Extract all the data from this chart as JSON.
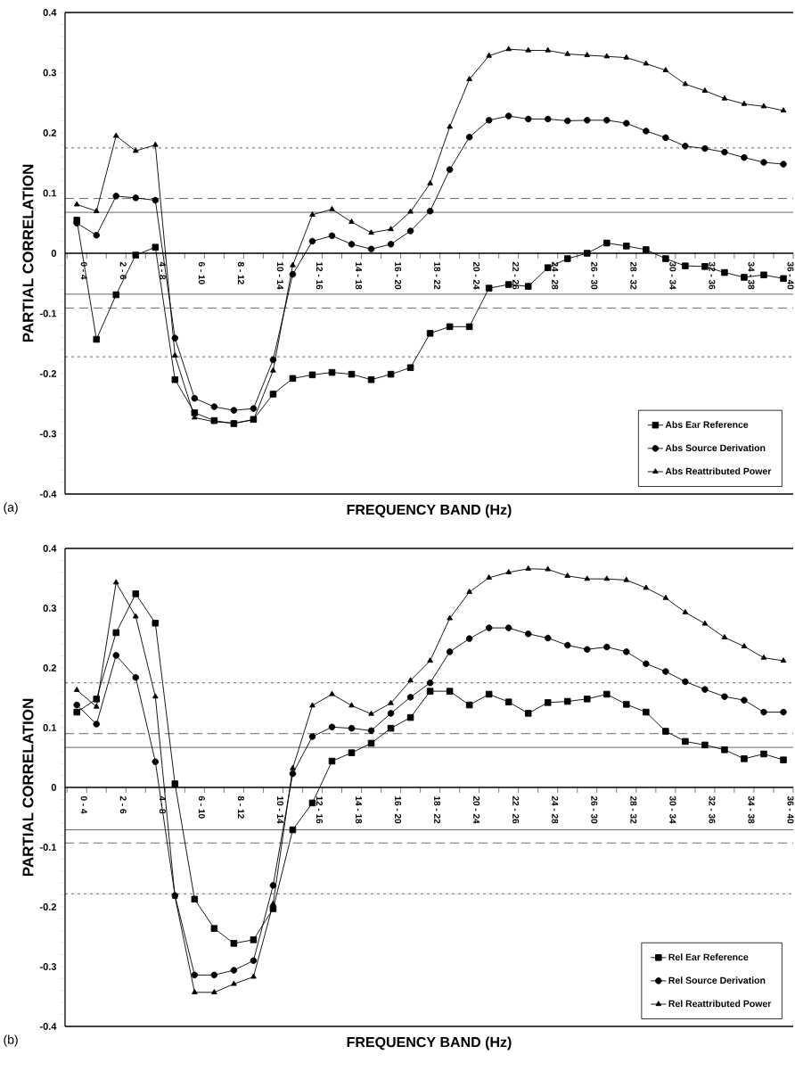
{
  "chart_data": [
    {
      "type": "line",
      "categories": [
        "0 - 4",
        null,
        "2 - 6",
        null,
        "4 - 8",
        null,
        "6 - 10",
        null,
        "8 - 12",
        null,
        "10 - 14",
        null,
        "12 - 16",
        null,
        "14 - 18",
        null,
        "16 - 20",
        null,
        "18 - 22",
        null,
        "20 - 24",
        null,
        "22 - 26",
        null,
        "24 - 28",
        null,
        "26 - 30",
        null,
        "28 - 32",
        null,
        "30 - 34",
        null,
        "32 - 36",
        null,
        "34 - 38",
        null,
        "36 - 40"
      ],
      "series": [
        {
          "name": "Abs Ear Reference",
          "color": "#000000",
          "marker": "square",
          "values": [
            0.055,
            -0.143,
            -0.069,
            -0.003,
            0.01,
            -0.21,
            -0.265,
            -0.278,
            -0.283,
            -0.276,
            -0.234,
            -0.208,
            -0.202,
            -0.198,
            -0.201,
            -0.21,
            -0.201,
            -0.19,
            -0.133,
            -0.122,
            -0.122,
            -0.058,
            -0.052,
            -0.055,
            -0.024,
            -0.009,
            0.0,
            0.017,
            0.012,
            0.006,
            -0.009,
            -0.021,
            -0.022,
            -0.032,
            -0.04,
            -0.036,
            -0.042
          ]
        },
        {
          "name": "Abs Source Derivation",
          "color": "#000000",
          "marker": "circle",
          "values": [
            0.05,
            0.03,
            0.095,
            0.092,
            0.088,
            -0.141,
            -0.241,
            -0.255,
            -0.261,
            -0.258,
            -0.177,
            -0.035,
            0.02,
            0.029,
            0.015,
            0.007,
            0.015,
            0.037,
            0.07,
            0.139,
            0.193,
            0.221,
            0.228,
            0.223,
            0.223,
            0.22,
            0.221,
            0.221,
            0.216,
            0.203,
            0.192,
            0.178,
            0.174,
            0.168,
            0.159,
            0.151,
            0.148
          ]
        },
        {
          "name": "Abs Reattributed Power",
          "color": "#000000",
          "marker": "triangle",
          "values": [
            0.081,
            0.07,
            0.195,
            0.17,
            0.18,
            -0.17,
            -0.273,
            -0.28,
            -0.282,
            -0.277,
            -0.195,
            -0.02,
            0.064,
            0.073,
            0.052,
            0.034,
            0.04,
            0.069,
            0.116,
            0.21,
            0.289,
            0.328,
            0.339,
            0.337,
            0.337,
            0.331,
            0.329,
            0.327,
            0.325,
            0.315,
            0.304,
            0.281,
            0.27,
            0.257,
            0.248,
            0.244,
            0.237
          ]
        }
      ],
      "ylim": [
        -0.4,
        0.4
      ],
      "yticks": [
        -0.4,
        -0.3,
        -0.2,
        -0.1,
        0,
        0.1,
        0.2,
        0.3,
        0.4
      ],
      "xlabel": "FREQUENCY BAND (Hz)",
      "ylabel": "PARTIAL CORRELATION",
      "ref_lines": [
        {
          "axis": "y",
          "value": 0.175,
          "line_style": "dotted",
          "color": "#000000"
        },
        {
          "axis": "y",
          "value": 0.091,
          "line_style": "dashed",
          "color": "#000000"
        },
        {
          "axis": "y",
          "value": 0.068,
          "line_style": "solid",
          "color": "#000000"
        },
        {
          "axis": "y",
          "value": -0.068,
          "line_style": "solid",
          "color": "#000000"
        },
        {
          "axis": "y",
          "value": -0.091,
          "line_style": "dashed",
          "color": "#000000"
        },
        {
          "axis": "y",
          "value": -0.172,
          "line_style": "dotted",
          "color": "#000000"
        }
      ],
      "annotations": [
        "(a)"
      ],
      "legend": "bottom right"
    },
    {
      "type": "line",
      "categories": [
        "0 - 4",
        null,
        "2 - 6",
        null,
        "4 - 8",
        null,
        "6 - 10",
        null,
        "8 - 12",
        null,
        "10 - 14",
        null,
        "12 - 16",
        null,
        "14 - 18",
        null,
        "16 - 20",
        null,
        "18 - 22",
        null,
        "20 - 24",
        null,
        "22 - 26",
        null,
        "24 - 28",
        null,
        "26 - 30",
        null,
        "28 - 32",
        null,
        "30 - 34",
        null,
        "32 - 36",
        null,
        "34 - 38",
        null,
        "36 - 40"
      ],
      "series": [
        {
          "name": "Rel Ear Reference",
          "color": "#000000",
          "marker": "square",
          "values": [
            0.126,
            0.148,
            0.259,
            0.324,
            0.275,
            0.006,
            -0.187,
            -0.236,
            -0.261,
            -0.255,
            -0.203,
            -0.071,
            -0.026,
            0.044,
            0.058,
            0.074,
            0.099,
            0.117,
            0.161,
            0.161,
            0.138,
            0.156,
            0.143,
            0.124,
            0.142,
            0.144,
            0.148,
            0.156,
            0.139,
            0.126,
            0.094,
            0.077,
            0.071,
            0.063,
            0.048,
            0.056,
            0.046
          ]
        },
        {
          "name": "Rel Source Derivation",
          "color": "#000000",
          "marker": "circle",
          "values": [
            0.138,
            0.106,
            0.221,
            0.184,
            0.043,
            -0.181,
            -0.314,
            -0.314,
            -0.306,
            -0.29,
            -0.164,
            0.023,
            0.085,
            0.101,
            0.099,
            0.095,
            0.124,
            0.151,
            0.175,
            0.227,
            0.249,
            0.267,
            0.267,
            0.257,
            0.25,
            0.238,
            0.231,
            0.235,
            0.227,
            0.207,
            0.194,
            0.177,
            0.164,
            0.152,
            0.146,
            0.126,
            0.126
          ]
        },
        {
          "name": "Rel Reattributed Power",
          "color": "#000000",
          "marker": "triangle",
          "values": [
            0.163,
            0.135,
            0.343,
            0.286,
            0.152,
            -0.183,
            -0.343,
            -0.343,
            -0.329,
            -0.317,
            -0.195,
            0.032,
            0.137,
            0.156,
            0.137,
            0.123,
            0.141,
            0.179,
            0.212,
            0.283,
            0.327,
            0.351,
            0.36,
            0.366,
            0.365,
            0.354,
            0.349,
            0.349,
            0.347,
            0.334,
            0.317,
            0.293,
            0.274,
            0.251,
            0.236,
            0.217,
            0.212
          ]
        }
      ],
      "ylim": [
        -0.4,
        0.4
      ],
      "yticks": [
        -0.4,
        -0.3,
        -0.2,
        -0.1,
        0,
        0.1,
        0.2,
        0.3,
        0.4
      ],
      "xlabel": "FREQUENCY BAND (Hz)",
      "ylabel": "PARTIAL CORRELATION",
      "ref_lines": [
        {
          "axis": "y",
          "value": 0.175,
          "line_style": "dotted",
          "color": "#000000"
        },
        {
          "axis": "y",
          "value": 0.09,
          "line_style": "dashed",
          "color": "#000000"
        },
        {
          "axis": "y",
          "value": 0.067,
          "line_style": "solid",
          "color": "#000000"
        },
        {
          "axis": "y",
          "value": -0.071,
          "line_style": "solid",
          "color": "#000000"
        },
        {
          "axis": "y",
          "value": -0.093,
          "line_style": "dashed",
          "color": "#000000"
        },
        {
          "axis": "y",
          "value": -0.178,
          "line_style": "dotted",
          "color": "#000000"
        }
      ],
      "annotations": [
        "(b)"
      ],
      "legend": "bottom right"
    }
  ]
}
